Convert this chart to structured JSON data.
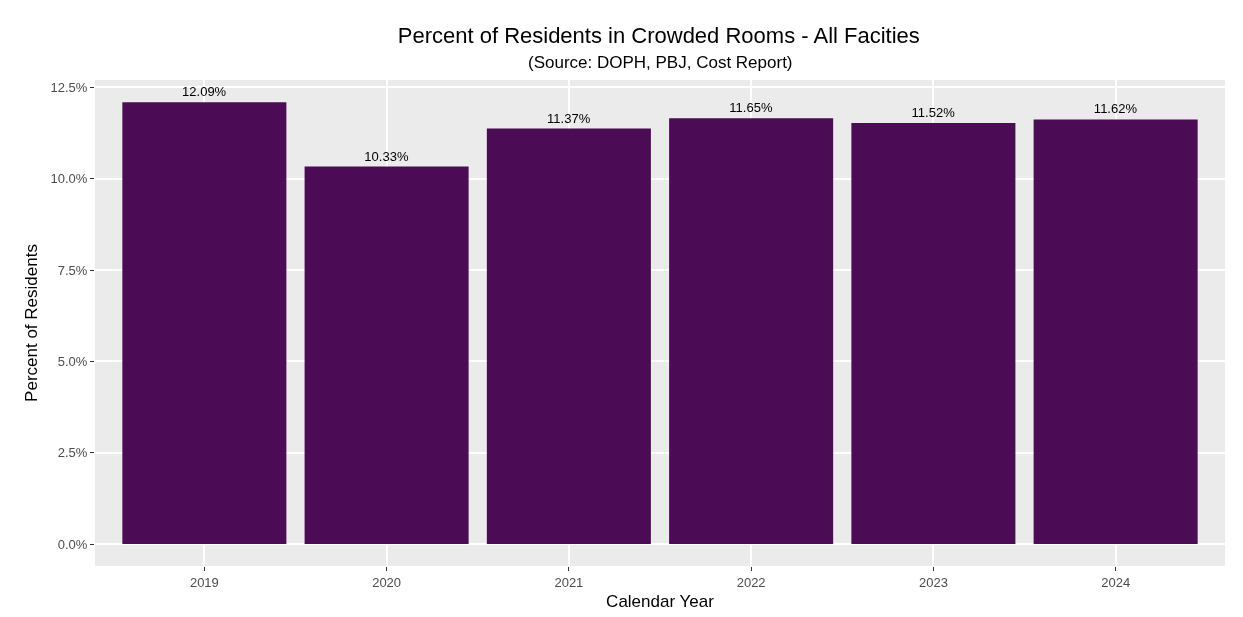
{
  "chart_data": {
    "type": "bar",
    "title": "Percent of Residents in Crowded Rooms - All Facities",
    "subtitle": "(Source: DOPH, PBJ, Cost Report)",
    "xlabel": "Calendar Year",
    "ylabel": "Percent of Residents",
    "categories": [
      "2019",
      "2020",
      "2021",
      "2022",
      "2023",
      "2024"
    ],
    "values": [
      12.09,
      10.33,
      11.37,
      11.65,
      11.52,
      11.62
    ],
    "value_labels": [
      "12.09%",
      "10.33%",
      "11.37%",
      "11.65%",
      "11.52%",
      "11.62%"
    ],
    "color": "#4b0c55",
    "ylim": [
      -0.6,
      12.7
    ],
    "yticks": [
      {
        "value": 0,
        "label": "0.0%"
      },
      {
        "value": 2.5,
        "label": "2.5%"
      },
      {
        "value": 5,
        "label": "5.0%"
      },
      {
        "value": 7.5,
        "label": "7.5%"
      },
      {
        "value": 10,
        "label": "10.0%"
      },
      {
        "value": 12.5,
        "label": "12.5%"
      }
    ],
    "grid": true
  }
}
